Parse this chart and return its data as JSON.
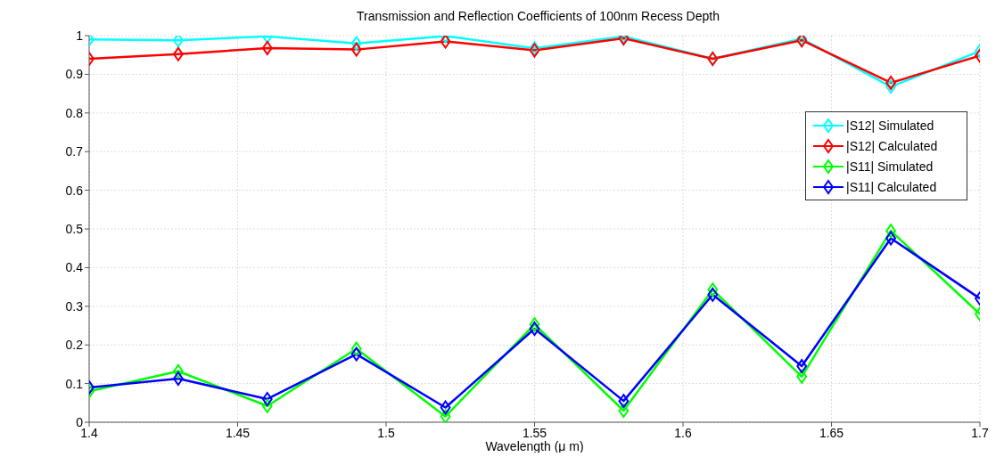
{
  "chart_data": {
    "type": "line",
    "title": "Transmission and Reflection Coefficients of 100nm Recess Depth",
    "xlabel": "Wavelength (μ m)",
    "x": [
      1.4,
      1.43,
      1.46,
      1.49,
      1.52,
      1.55,
      1.58,
      1.61,
      1.64,
      1.67,
      1.7
    ],
    "series": [
      {
        "name": "|S12| Simulated",
        "color": "#00ffff",
        "values": [
          0.99,
          0.988,
          0.998,
          0.98,
          0.999,
          0.967,
          0.998,
          0.94,
          0.992,
          0.868,
          0.96
        ]
      },
      {
        "name": "|S12| Calculated",
        "color": "#ff0000",
        "values": [
          0.94,
          0.952,
          0.968,
          0.964,
          0.985,
          0.962,
          0.993,
          0.94,
          0.988,
          0.878,
          0.948
        ]
      },
      {
        "name": "|S11| Simulated",
        "color": "#00ff00",
        "values": [
          0.08,
          0.132,
          0.042,
          0.19,
          0.015,
          0.253,
          0.03,
          0.343,
          0.118,
          0.495,
          0.28
        ]
      },
      {
        "name": "|S11| Calculated",
        "color": "#0000ff",
        "values": [
          0.09,
          0.113,
          0.06,
          0.176,
          0.038,
          0.242,
          0.055,
          0.33,
          0.145,
          0.476,
          0.32
        ]
      }
    ],
    "xlim": [
      1.4,
      1.7
    ],
    "xticks": [
      1.4,
      1.45,
      1.5,
      1.55,
      1.6,
      1.65,
      1.7
    ],
    "ylim": [
      0,
      1
    ],
    "yticks": [
      0,
      0.1,
      0.2,
      0.3,
      0.4,
      0.5,
      0.6,
      0.7,
      0.8,
      0.9,
      1
    ],
    "grid": true,
    "legend": "right",
    "marker": "diamond",
    "line_style": "solid"
  }
}
